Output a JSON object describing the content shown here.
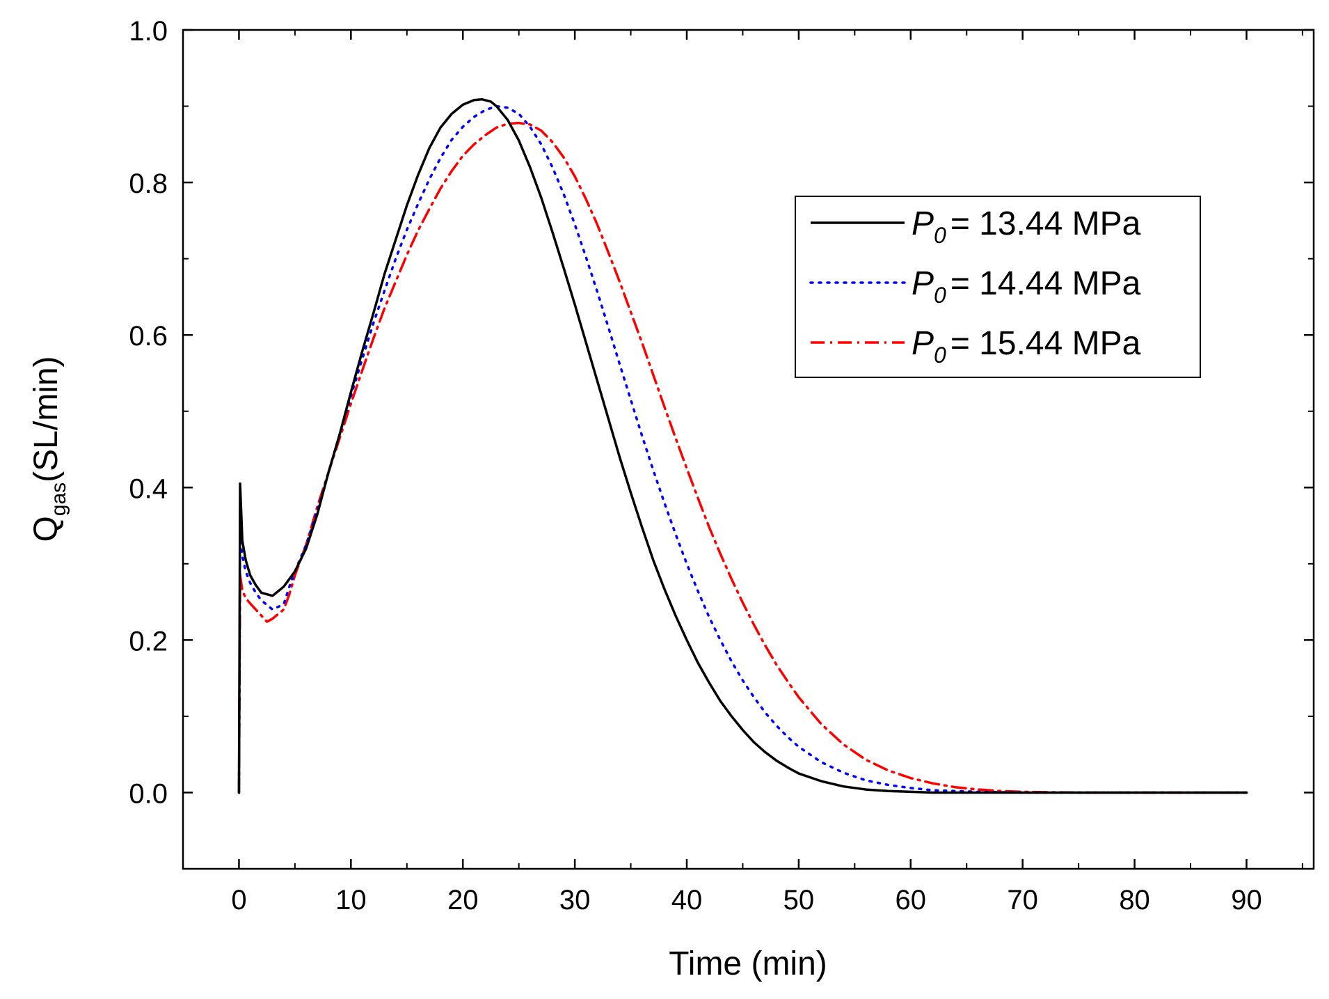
{
  "chart_data": {
    "type": "line",
    "title": "",
    "xlabel": "Time (min)",
    "ylabel": {
      "main": "Q",
      "sub": "gas",
      "rest": "(SL/min)"
    },
    "xlim": [
      -5,
      96
    ],
    "ylim": [
      -0.1,
      1.0
    ],
    "x_ticks": [
      0,
      10,
      20,
      30,
      40,
      50,
      60,
      70,
      80,
      90
    ],
    "x_tick_labels": [
      "0",
      "10",
      "20",
      "30",
      "40",
      "50",
      "60",
      "70",
      "80",
      "90"
    ],
    "y_ticks": [
      0.0,
      0.2,
      0.4,
      0.6,
      0.8,
      1.0
    ],
    "y_tick_labels": [
      "0.0",
      "0.2",
      "0.4",
      "0.6",
      "0.8",
      "1.0"
    ],
    "legend_position": "top-right",
    "series": [
      {
        "name": "13.44 MPa",
        "legend_symbol": "P",
        "legend_subscript": "0",
        "legend_eq": "= 13.44 MPa",
        "color": "#000000",
        "style": "solid",
        "x": [
          0,
          0.1,
          0.3,
          0.6,
          1,
          1.5,
          2,
          3,
          4,
          5,
          6,
          7,
          8,
          9,
          10,
          11,
          12,
          13,
          14,
          15,
          16,
          17,
          18,
          19,
          20,
          21,
          21.7,
          22.5,
          23,
          24,
          25,
          26,
          27,
          28,
          29,
          30,
          31,
          32,
          33,
          34,
          35,
          36,
          37,
          38,
          39,
          40,
          41,
          42,
          43,
          44,
          45,
          46,
          47,
          48,
          49,
          50,
          52,
          54,
          56,
          58,
          60,
          62,
          66,
          70,
          75,
          80,
          85,
          90
        ],
        "y": [
          0.0,
          0.405,
          0.33,
          0.305,
          0.285,
          0.272,
          0.262,
          0.258,
          0.27,
          0.29,
          0.32,
          0.365,
          0.42,
          0.47,
          0.525,
          0.578,
          0.628,
          0.68,
          0.725,
          0.77,
          0.81,
          0.845,
          0.872,
          0.89,
          0.902,
          0.908,
          0.909,
          0.906,
          0.9,
          0.882,
          0.855,
          0.82,
          0.78,
          0.735,
          0.688,
          0.64,
          0.59,
          0.54,
          0.49,
          0.44,
          0.393,
          0.348,
          0.305,
          0.267,
          0.232,
          0.2,
          0.17,
          0.144,
          0.12,
          0.1,
          0.082,
          0.066,
          0.053,
          0.042,
          0.033,
          0.025,
          0.015,
          0.008,
          0.004,
          0.002,
          0.001,
          0.0,
          0.0,
          0.0,
          0.0,
          0.0,
          0.0,
          0.0
        ]
      },
      {
        "name": "14.44 MPa",
        "legend_symbol": "P",
        "legend_subscript": "0",
        "legend_eq": "= 14.44 MPa",
        "color": "#0000ff",
        "style": "dotted",
        "x": [
          0,
          0.1,
          0.3,
          0.6,
          1,
          1.5,
          2,
          3,
          4,
          4.5,
          5,
          6,
          7,
          8,
          9,
          10,
          11,
          12,
          13,
          14,
          15,
          16,
          17,
          18,
          19,
          20,
          21,
          22,
          23,
          24,
          25,
          26,
          27,
          28,
          29,
          30,
          31,
          32,
          33,
          34,
          35,
          36,
          37,
          38,
          39,
          40,
          41,
          42,
          43,
          44,
          45,
          46,
          47,
          48,
          49,
          50,
          52,
          54,
          56,
          58,
          60,
          62,
          64,
          66,
          70,
          75,
          80,
          85,
          90
        ],
        "y": [
          0.0,
          0.34,
          0.31,
          0.29,
          0.275,
          0.262,
          0.252,
          0.24,
          0.247,
          0.27,
          0.29,
          0.325,
          0.37,
          0.42,
          0.47,
          0.52,
          0.568,
          0.615,
          0.658,
          0.7,
          0.738,
          0.772,
          0.804,
          0.832,
          0.856,
          0.873,
          0.886,
          0.895,
          0.9,
          0.898,
          0.89,
          0.873,
          0.85,
          0.82,
          0.785,
          0.745,
          0.702,
          0.657,
          0.61,
          0.562,
          0.515,
          0.468,
          0.423,
          0.38,
          0.339,
          0.3,
          0.264,
          0.23,
          0.2,
          0.172,
          0.147,
          0.125,
          0.105,
          0.088,
          0.073,
          0.06,
          0.04,
          0.026,
          0.016,
          0.01,
          0.006,
          0.003,
          0.002,
          0.001,
          0.0,
          0.0,
          0.0,
          0.0,
          0.0
        ]
      },
      {
        "name": "15.44 MPa",
        "legend_symbol": "P",
        "legend_subscript": "0",
        "legend_eq": "= 15.44 MPa",
        "color": "#ff0000",
        "style": "dashdot",
        "x": [
          0,
          0.1,
          0.3,
          0.6,
          1,
          1.5,
          2,
          2.5,
          3,
          4,
          4.5,
          5,
          6,
          7,
          8,
          9,
          10,
          11,
          12,
          13,
          14,
          15,
          16,
          17,
          18,
          19,
          20,
          21,
          22,
          23,
          24,
          25,
          26,
          27,
          28,
          29,
          30,
          31,
          32,
          33,
          34,
          35,
          36,
          37,
          38,
          39,
          40,
          41,
          42,
          43,
          44,
          45,
          46,
          47,
          48,
          49,
          50,
          52,
          54,
          56,
          58,
          60,
          62,
          64,
          66,
          68,
          70,
          75,
          80,
          85,
          90
        ],
        "y": [
          0.0,
          0.285,
          0.265,
          0.255,
          0.248,
          0.24,
          0.232,
          0.224,
          0.228,
          0.24,
          0.26,
          0.285,
          0.325,
          0.375,
          0.42,
          0.465,
          0.51,
          0.553,
          0.595,
          0.635,
          0.67,
          0.705,
          0.737,
          0.765,
          0.792,
          0.815,
          0.835,
          0.85,
          0.862,
          0.872,
          0.877,
          0.878,
          0.876,
          0.868,
          0.853,
          0.833,
          0.808,
          0.778,
          0.745,
          0.708,
          0.67,
          0.63,
          0.59,
          0.548,
          0.506,
          0.465,
          0.425,
          0.386,
          0.348,
          0.313,
          0.28,
          0.249,
          0.22,
          0.193,
          0.168,
          0.146,
          0.125,
          0.09,
          0.063,
          0.043,
          0.029,
          0.019,
          0.012,
          0.007,
          0.004,
          0.002,
          0.001,
          0.0,
          0.0,
          0.0,
          0.0
        ]
      }
    ]
  }
}
